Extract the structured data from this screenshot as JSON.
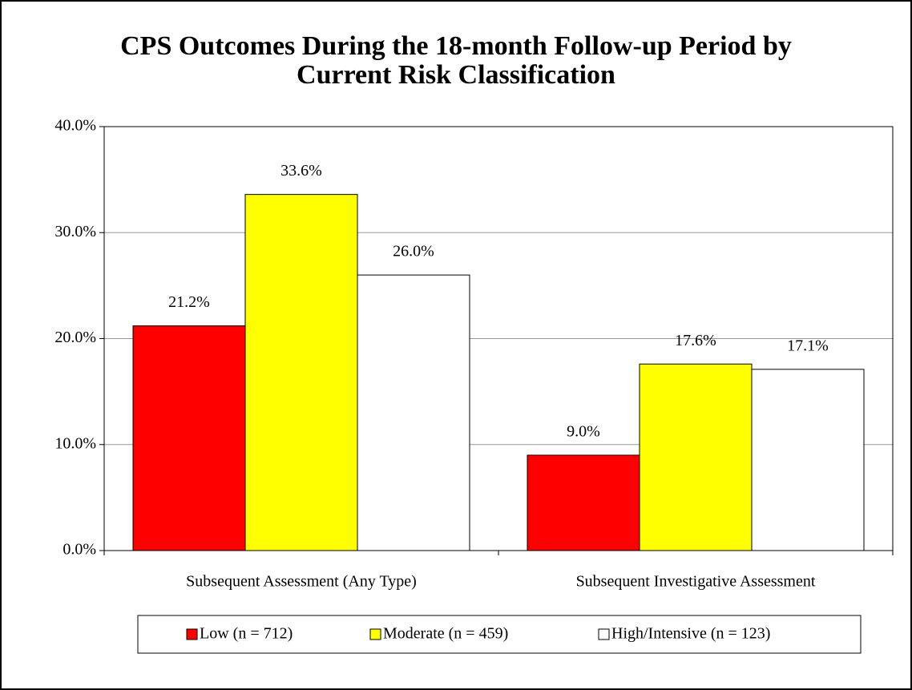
{
  "chart_data": {
    "type": "bar",
    "title": "CPS Outcomes During the 18-month Follow-up Period by Current Risk Classification",
    "categories": [
      "Subsequent Assessment (Any Type)",
      "Subsequent Investigative Assessment"
    ],
    "series": [
      {
        "name": "Low (n = 712)",
        "color": "#ff0000",
        "values": [
          21.2,
          9.0
        ],
        "value_labels": [
          "21.2%",
          "9.0%"
        ]
      },
      {
        "name": "Moderate (n = 459)",
        "color": "#ffff00",
        "values": [
          33.6,
          17.6
        ],
        "value_labels": [
          "33.6%",
          "17.6%"
        ]
      },
      {
        "name": "High/Intensive (n = 123)",
        "color": "#ffffff",
        "values": [
          26.0,
          17.1
        ],
        "value_labels": [
          "26.0%",
          "17.1%"
        ]
      }
    ],
    "ylim": [
      0,
      40
    ],
    "yticks": [
      {
        "value": 0,
        "label": "0.0%"
      },
      {
        "value": 10,
        "label": "10.0%"
      },
      {
        "value": 20,
        "label": "20.0%"
      },
      {
        "value": 30,
        "label": "30.0%"
      },
      {
        "value": 40,
        "label": "40.0%"
      }
    ],
    "grid": true,
    "legend": "bottom"
  }
}
